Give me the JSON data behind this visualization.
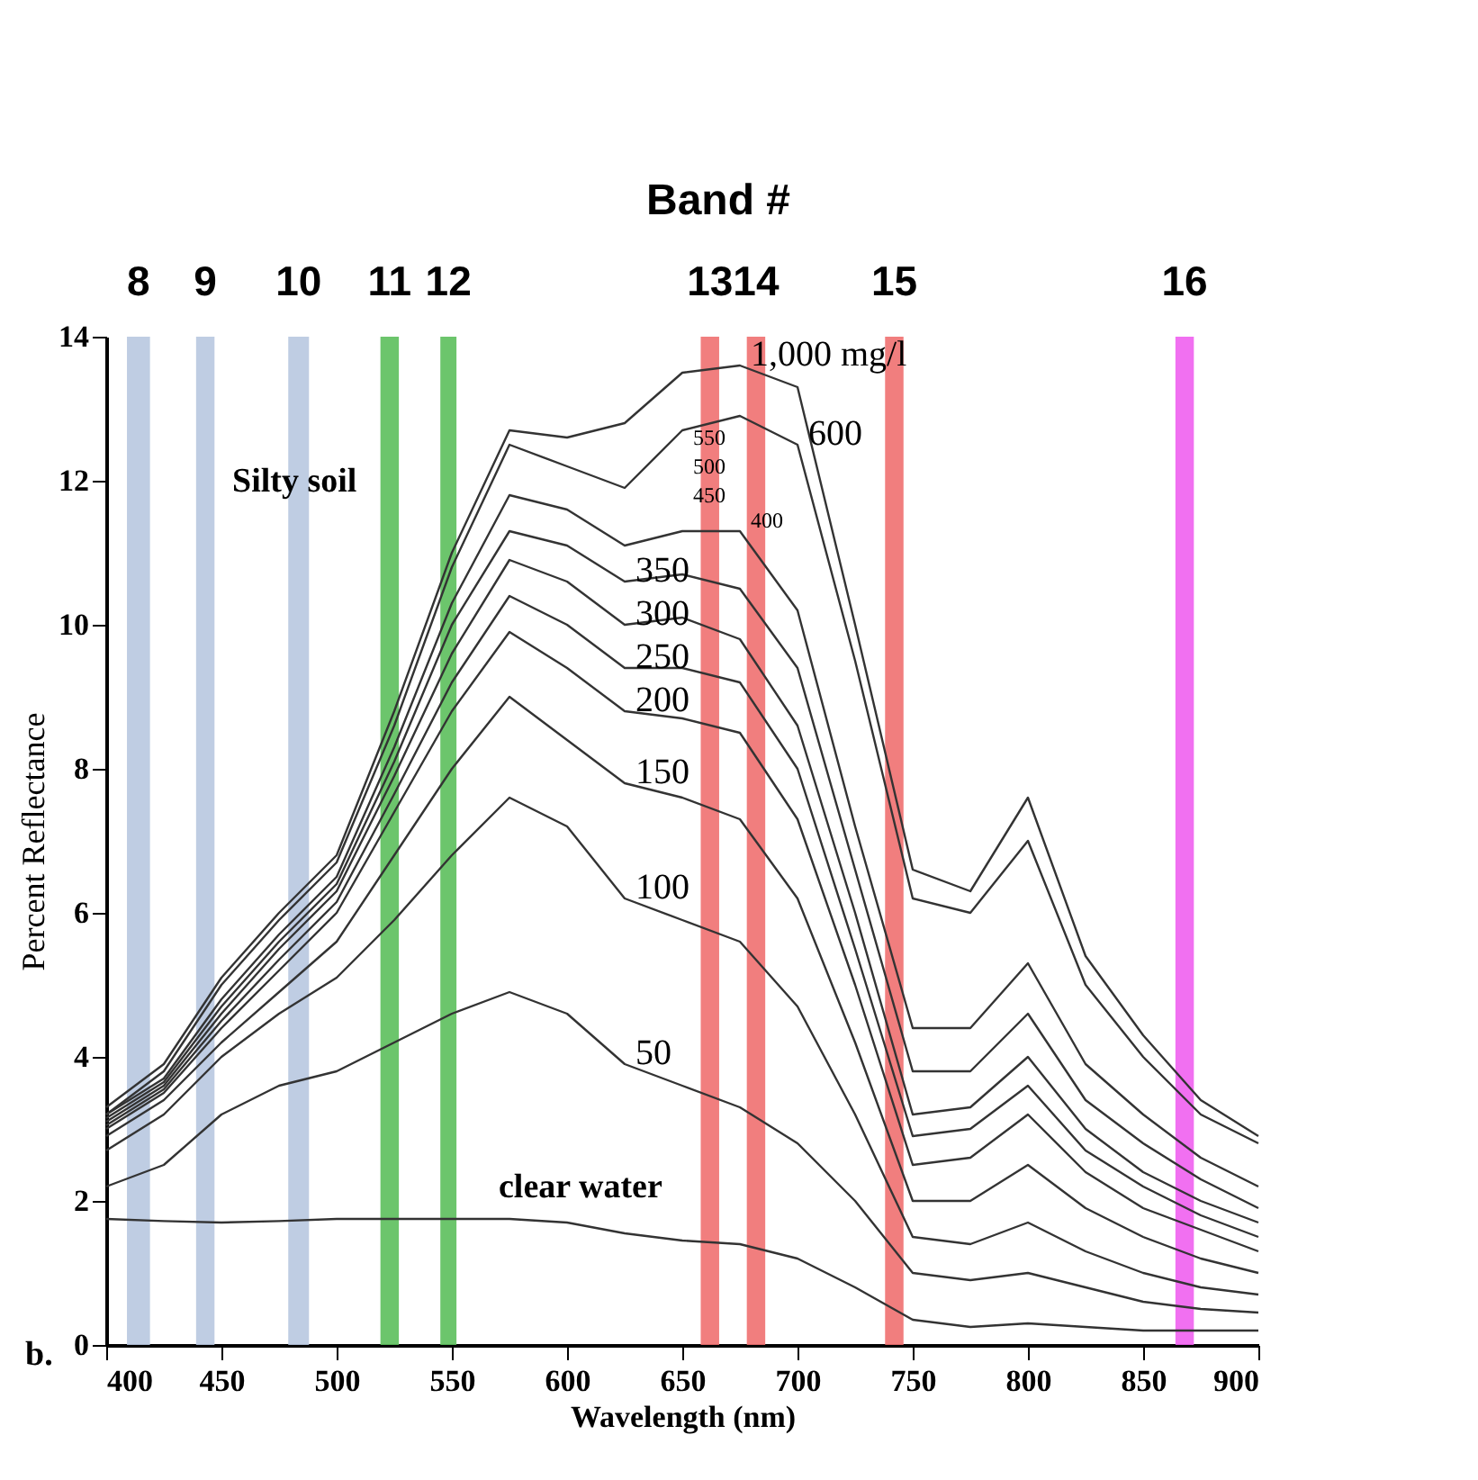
{
  "chart_data": {
    "type": "line",
    "x2label": "Band #",
    "xlabel": "Wavelength (nm)",
    "ylabel": "Percent Reflectance",
    "x": [
      400,
      425,
      450,
      475,
      500,
      525,
      550,
      575,
      600,
      625,
      650,
      675,
      700,
      725,
      750,
      775,
      800,
      825,
      850,
      875,
      900
    ],
    "xlim": [
      400,
      900
    ],
    "xticks": [
      400,
      450,
      500,
      550,
      600,
      650,
      700,
      750,
      800,
      850,
      900
    ],
    "ylim": [
      0,
      14
    ],
    "yticks": [
      0,
      2,
      4,
      6,
      8,
      10,
      12,
      14
    ],
    "grid": false,
    "legend": false,
    "marker": "none",
    "line_style": "solid",
    "series": [
      {
        "color": "#333333",
        "values": [
          1.75,
          1.72,
          1.7,
          1.72,
          1.75,
          1.75,
          1.75,
          1.75,
          1.7,
          1.55,
          1.45,
          1.4,
          1.2,
          0.8,
          0.35,
          0.25,
          0.3,
          0.25,
          0.2,
          0.2,
          0.2
        ]
      },
      {
        "color": "#333333",
        "values": [
          2.2,
          2.5,
          3.2,
          3.6,
          3.8,
          4.2,
          4.6,
          4.9,
          4.6,
          3.9,
          3.6,
          3.3,
          2.8,
          2.0,
          1.0,
          0.9,
          1.0,
          0.8,
          0.6,
          0.5,
          0.45
        ]
      },
      {
        "color": "#333333",
        "values": [
          2.7,
          3.2,
          4.0,
          4.6,
          5.1,
          5.9,
          6.8,
          7.6,
          7.2,
          6.2,
          5.9,
          5.6,
          4.7,
          3.2,
          1.5,
          1.4,
          1.7,
          1.3,
          1.0,
          0.8,
          0.7
        ]
      },
      {
        "color": "#333333",
        "values": [
          2.9,
          3.4,
          4.2,
          4.9,
          5.6,
          6.8,
          8.0,
          9.0,
          8.4,
          7.8,
          7.6,
          7.3,
          6.2,
          4.2,
          2.0,
          2.0,
          2.5,
          1.9,
          1.5,
          1.2,
          1.0
        ]
      },
      {
        "color": "#333333",
        "values": [
          3.0,
          3.5,
          4.4,
          5.2,
          6.0,
          7.4,
          8.8,
          9.9,
          9.4,
          8.8,
          8.7,
          8.5,
          7.3,
          5.0,
          2.5,
          2.6,
          3.2,
          2.4,
          1.9,
          1.6,
          1.3
        ]
      },
      {
        "color": "#333333",
        "values": [
          3.05,
          3.55,
          4.5,
          5.35,
          6.15,
          7.65,
          9.2,
          10.4,
          10.0,
          9.4,
          9.4,
          9.2,
          8.0,
          5.5,
          2.9,
          3.0,
          3.6,
          2.7,
          2.2,
          1.8,
          1.5
        ]
      },
      {
        "color": "#333333",
        "values": [
          3.1,
          3.6,
          4.6,
          5.5,
          6.3,
          7.9,
          9.6,
          10.9,
          10.6,
          10.0,
          10.1,
          9.8,
          8.6,
          6.0,
          3.2,
          3.3,
          4.0,
          3.0,
          2.4,
          2.0,
          1.7
        ]
      },
      {
        "color": "#333333",
        "values": [
          3.15,
          3.65,
          4.7,
          5.6,
          6.4,
          8.1,
          10.0,
          11.3,
          11.1,
          10.6,
          10.7,
          10.5,
          9.4,
          6.6,
          3.8,
          3.8,
          4.6,
          3.4,
          2.8,
          2.3,
          1.9
        ]
      },
      {
        "color": "#333333",
        "values": [
          3.2,
          3.7,
          4.8,
          5.7,
          6.5,
          8.3,
          10.3,
          11.8,
          11.6,
          11.1,
          11.3,
          11.3,
          10.2,
          7.2,
          4.4,
          4.4,
          5.3,
          3.9,
          3.2,
          2.6,
          2.2
        ]
      },
      {
        "color": "#333333",
        "values": [
          3.2,
          3.8,
          5.0,
          5.9,
          6.7,
          8.6,
          10.8,
          12.5,
          12.2,
          11.9,
          12.7,
          12.9,
          12.5,
          9.5,
          6.2,
          6.0,
          7.0,
          5.0,
          4.0,
          3.2,
          2.8
        ]
      },
      {
        "color": "#333333",
        "values": [
          3.3,
          3.9,
          5.1,
          6.0,
          6.8,
          8.8,
          11.0,
          12.7,
          12.6,
          12.8,
          13.5,
          13.6,
          13.3,
          10.0,
          6.6,
          6.3,
          7.6,
          5.4,
          4.3,
          3.4,
          2.9
        ]
      }
    ],
    "bands": [
      {
        "axis": "x",
        "from": 409,
        "to": 419,
        "label": "8",
        "color": "#b8c8e0"
      },
      {
        "axis": "x",
        "from": 439,
        "to": 447,
        "label": "9",
        "color": "#b8c8e0"
      },
      {
        "axis": "x",
        "from": 479,
        "to": 488,
        "label": "10",
        "color": "#b8c8e0"
      },
      {
        "axis": "x",
        "from": 519,
        "to": 527,
        "label": "11",
        "color": "#5cbf5c"
      },
      {
        "axis": "x",
        "from": 545,
        "to": 552,
        "label": "12",
        "color": "#5cbf5c"
      },
      {
        "axis": "x",
        "from": 658,
        "to": 666,
        "label": "13",
        "color": "#f07070"
      },
      {
        "axis": "x",
        "from": 678,
        "to": 686,
        "label": "14",
        "color": "#f07070"
      },
      {
        "axis": "x",
        "from": 738,
        "to": 746,
        "label": "15",
        "color": "#f07070"
      },
      {
        "axis": "x",
        "from": 864,
        "to": 872,
        "label": "16",
        "color": "#f060f0"
      }
    ],
    "annotations": [
      "Silty  soil",
      "b.",
      "clear water",
      "550",
      "500",
      "450",
      {
        "text": "50",
        "x": 625,
        "y": 3.9
      },
      {
        "text": "100",
        "x": 625,
        "y": 6.2
      },
      {
        "text": "150",
        "x": 625,
        "y": 7.8
      },
      {
        "text": "200",
        "x": 625,
        "y": 8.8
      },
      {
        "text": "250",
        "x": 625,
        "y": 9.4
      },
      {
        "text": "300",
        "x": 625,
        "y": 10.0
      },
      {
        "text": "350",
        "x": 625,
        "y": 10.6
      },
      {
        "text": "400",
        "x": 675,
        "y": 11.3
      },
      {
        "text": "600",
        "x": 700,
        "y": 12.5
      },
      {
        "text": "1,000 mg/l",
        "x": 675,
        "y": 13.6
      }
    ]
  }
}
